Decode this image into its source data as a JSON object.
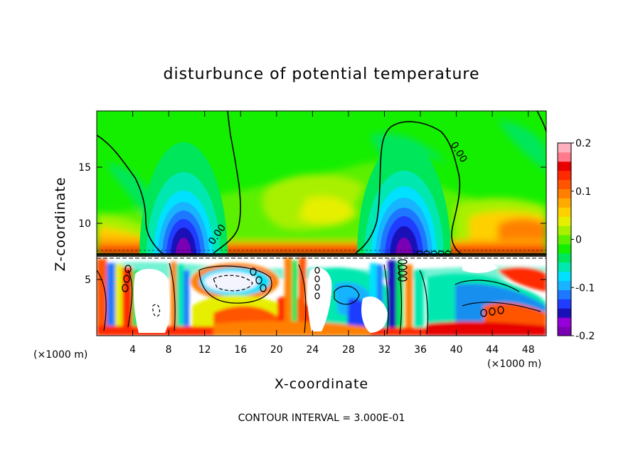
{
  "chart_data": {
    "type": "heatmap",
    "title": "disturbunce of potential temperature",
    "xlabel": "X-coordinate",
    "ylabel": "Z-coordinate",
    "x_unit": "(×1000 m)",
    "y_unit": "(×1000 m)",
    "x_ticks": [
      4,
      8,
      12,
      16,
      20,
      24,
      28,
      32,
      36,
      40,
      44,
      48
    ],
    "y_ticks": [
      5,
      10,
      15
    ],
    "xlim": [
      0,
      50
    ],
    "ylim": [
      0,
      20
    ],
    "colorbar": {
      "min": -0.2,
      "max": 0.2,
      "labels": [
        "0.2",
        "0.1",
        "0",
        "-0.1",
        "-0.2"
      ],
      "label_values": [
        0.2,
        0.1,
        0,
        -0.1,
        -0.2
      ],
      "colors": [
        "#7a00b4",
        "#9600d8",
        "#1a10b8",
        "#1f3cff",
        "#1e78ff",
        "#18b4ff",
        "#00e0ff",
        "#00e8b0",
        "#00e65a",
        "#14ef00",
        "#5cf000",
        "#a8f000",
        "#e6ef00",
        "#ffd000",
        "#ffaa00",
        "#ff8000",
        "#ff5500",
        "#ff2a00",
        "#e80000",
        "#ff7a8c",
        "#ffb0be"
      ]
    },
    "contour_label": "0.00",
    "contour_interval_text": "CONTOUR INTERVAL = 3.000E-01",
    "features": [
      {
        "name": "cold-anomaly-left",
        "x": 10,
        "z": 8.2,
        "value": -0.18
      },
      {
        "name": "cold-anomaly-right",
        "x": 34,
        "z": 8.2,
        "value": -0.2
      },
      {
        "name": "warm-band",
        "z": 8,
        "value": 0.12
      }
    ]
  }
}
